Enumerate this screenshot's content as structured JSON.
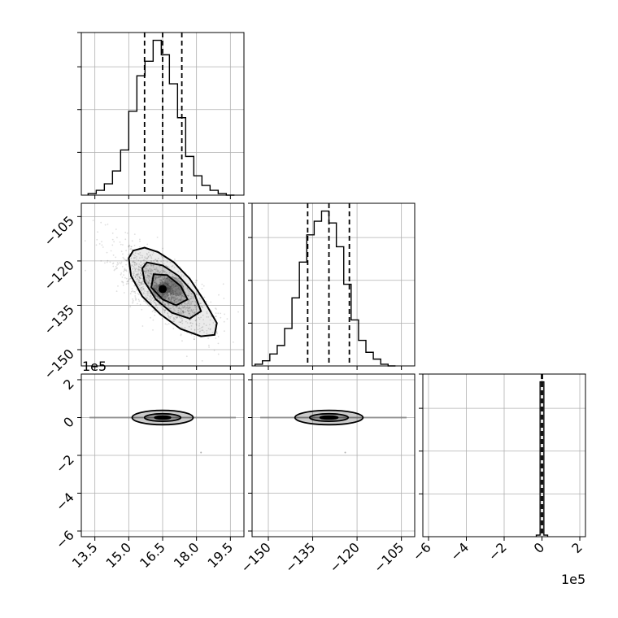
{
  "chart_data": {
    "type": "corner",
    "grid": true,
    "offset_label": "1e5",
    "axes_ticks": {
      "p0": [
        13.5,
        15.0,
        16.5,
        18.0,
        19.5
      ],
      "p1": [
        -150,
        -135,
        -120,
        -105
      ],
      "p2": [
        -6,
        -4,
        -2,
        0,
        2
      ]
    },
    "tick_labels": {
      "p0": [
        "13.5",
        "15.0",
        "16.5",
        "18.0",
        "19.5"
      ],
      "p1": [
        "−150",
        "−135",
        "−120",
        "−105"
      ],
      "p2": [
        "−6",
        "−4",
        "−2",
        "0",
        "2"
      ]
    },
    "ranges": {
      "p0": [
        12.9,
        20.1
      ],
      "p1": [
        -155.5,
        -100.5
      ],
      "p2": [
        -6.3,
        2.3
      ]
    },
    "quantiles": {
      "p0": [
        15.7,
        16.5,
        17.35
      ],
      "p1": [
        -136.7,
        -129.5,
        -122.6
      ],
      "p2": [
        -0.02,
        0.0,
        0.02
      ]
    },
    "histograms": {
      "p0": {
        "edges": [
          13.2,
          13.56,
          13.92,
          14.28,
          14.64,
          15.0,
          15.36,
          15.72,
          16.08,
          16.44,
          16.8,
          17.16,
          17.52,
          17.88,
          18.24,
          18.6,
          18.96,
          19.32,
          19.68
        ],
        "counts": [
          1,
          3,
          7,
          15,
          28,
          52,
          74,
          83,
          96,
          87,
          69,
          48,
          24,
          12,
          6,
          3,
          1,
          0
        ]
      },
      "p1": {
        "edges": [
          -154.5,
          -152.0,
          -149.5,
          -147.0,
          -144.5,
          -142.0,
          -139.5,
          -137.0,
          -134.5,
          -132.0,
          -129.5,
          -127.0,
          -124.5,
          -122.0,
          -119.5,
          -117.0,
          -114.5,
          -112.0,
          -109.5,
          -107.0
        ],
        "counts": [
          1,
          3,
          7,
          12,
          22,
          40,
          61,
          77,
          85,
          91,
          84,
          70,
          48,
          27,
          15,
          8,
          4,
          1,
          0
        ]
      },
      "p2": {
        "edges": [
          -0.3,
          -0.1,
          0.1,
          0.3
        ],
        "counts": [
          1,
          98,
          1
        ]
      }
    },
    "contours_p1_vs_p0": [
      [
        [
          15.2,
          -116.5
        ],
        [
          15.7,
          -115.5
        ],
        [
          16.3,
          -117.0
        ],
        [
          17.0,
          -120.5
        ],
        [
          17.7,
          -126.0
        ],
        [
          18.3,
          -133.0
        ],
        [
          18.9,
          -141.0
        ],
        [
          18.8,
          -145.0
        ],
        [
          18.2,
          -145.5
        ],
        [
          17.3,
          -143.0
        ],
        [
          16.4,
          -138.0
        ],
        [
          15.6,
          -132.0
        ],
        [
          15.1,
          -125.0
        ],
        [
          15.0,
          -119.0
        ],
        [
          15.2,
          -116.5
        ]
      ],
      [
        [
          15.8,
          -120.5
        ],
        [
          16.5,
          -121.5
        ],
        [
          17.2,
          -125.0
        ],
        [
          17.9,
          -131.0
        ],
        [
          18.2,
          -137.0
        ],
        [
          17.7,
          -139.5
        ],
        [
          16.9,
          -137.5
        ],
        [
          16.2,
          -133.0
        ],
        [
          15.7,
          -127.0
        ],
        [
          15.6,
          -122.5
        ],
        [
          15.8,
          -120.5
        ]
      ],
      [
        [
          16.1,
          -124.5
        ],
        [
          16.7,
          -124.8
        ],
        [
          17.3,
          -128.5
        ],
        [
          17.6,
          -133.0
        ],
        [
          17.1,
          -135.0
        ],
        [
          16.5,
          -133.0
        ],
        [
          16.0,
          -129.0
        ],
        [
          16.1,
          -124.5
        ]
      ]
    ],
    "contour_p2_vs_p0": {
      "center": [
        16.5,
        0.0
      ],
      "radii": [
        [
          1.35,
          0.38
        ],
        [
          0.8,
          0.2
        ],
        [
          0.35,
          0.08
        ]
      ]
    },
    "contour_p2_vs_p1": {
      "center": [
        -129.5,
        0.0
      ],
      "radii": [
        [
          11.5,
          0.38
        ],
        [
          6.5,
          0.2
        ],
        [
          3.0,
          0.08
        ]
      ]
    }
  }
}
